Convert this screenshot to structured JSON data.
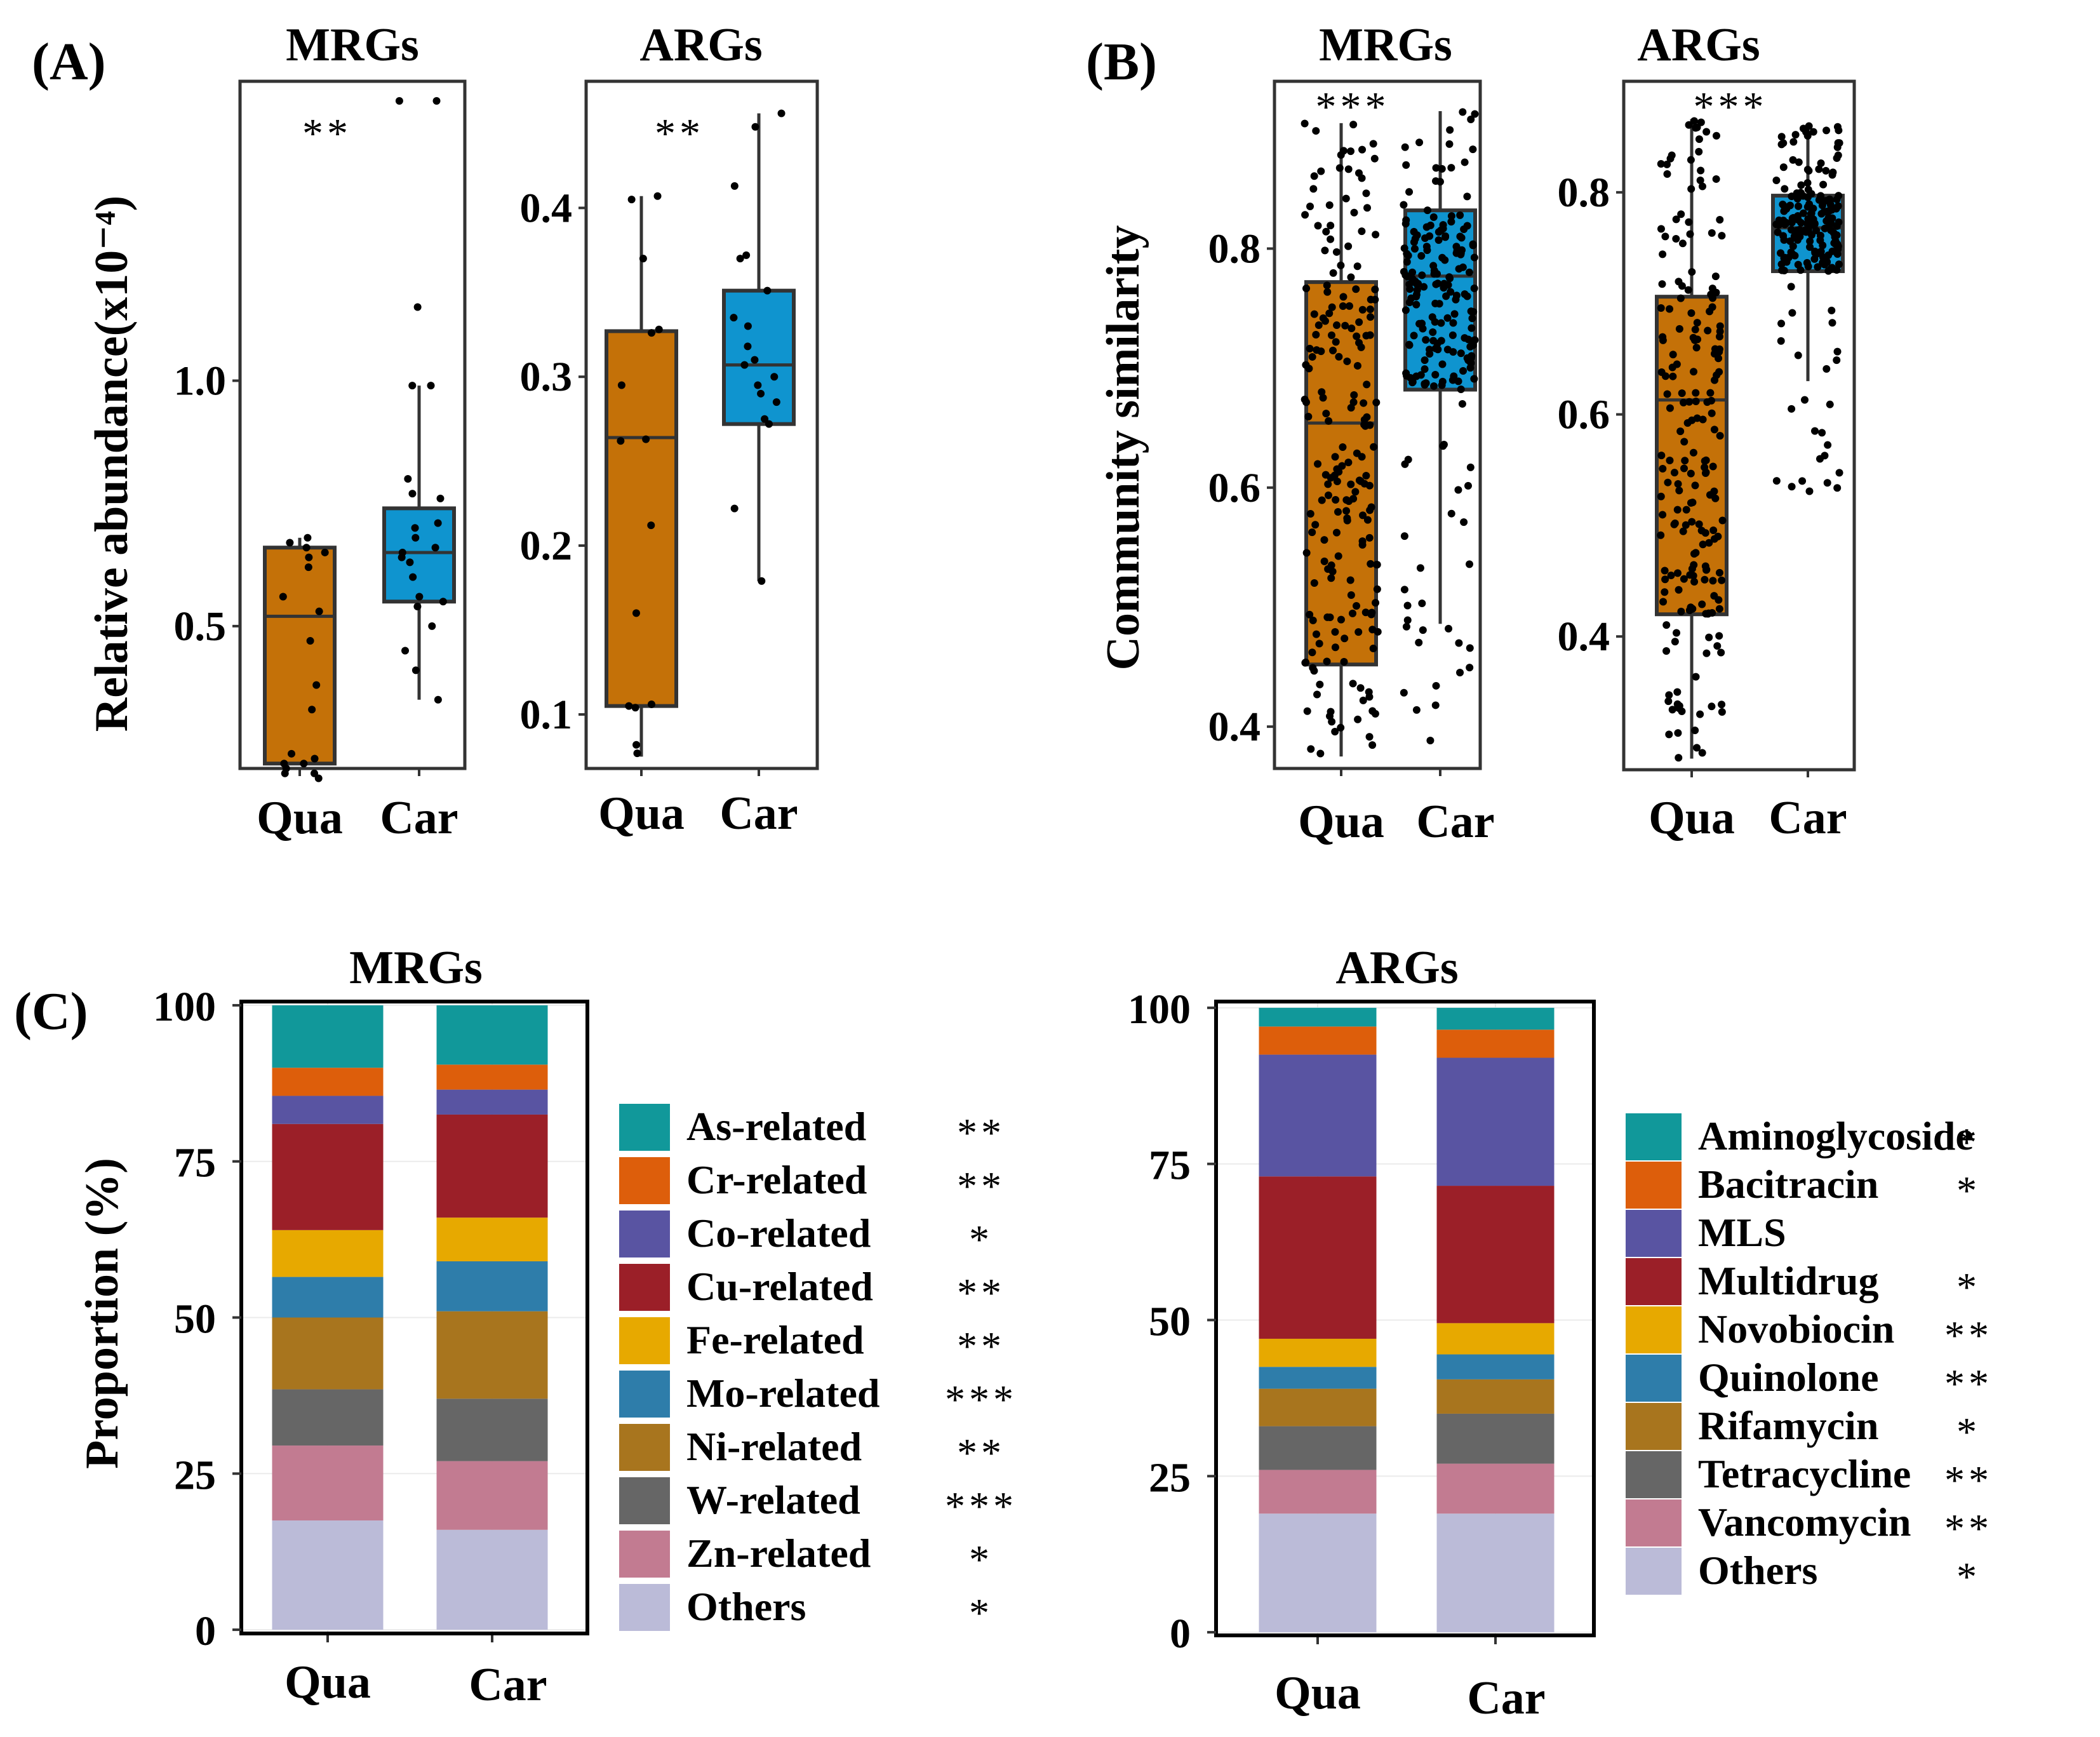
{
  "panel_labels": [
    "(A)",
    "(B)",
    "(C)"
  ],
  "colors": {
    "qua": "#C47108",
    "car": "#0F94CF"
  },
  "chart_data": [
    {
      "id": "A_MRGs",
      "type": "box",
      "title": "MRGs",
      "ylabel": "Relative abundance(x10⁻⁴)",
      "ylim": [
        0.21,
        1.61
      ],
      "yticks": [
        0.5,
        1.0
      ],
      "ytick_labels": [
        "0.5",
        "1.0"
      ],
      "categories": [
        "Qua",
        "Car"
      ],
      "significance": "**",
      "boxes": [
        {
          "name": "Qua",
          "q1": 0.22,
          "median": 0.52,
          "q3": 0.66,
          "lower": 0.22,
          "upper": 0.68,
          "points": [
            0.68,
            0.67,
            0.66,
            0.65,
            0.64,
            0.62,
            0.56,
            0.53,
            0.47,
            0.38,
            0.33,
            0.24,
            0.23,
            0.22,
            0.22,
            0.21,
            0.2,
            0.2,
            0.19
          ]
        },
        {
          "name": "Car",
          "q1": 0.55,
          "median": 0.65,
          "q3": 0.74,
          "lower": 0.35,
          "upper": 0.99,
          "points": [
            1.57,
            1.57,
            1.15,
            0.99,
            0.99,
            0.8,
            0.77,
            0.76,
            0.71,
            0.7,
            0.68,
            0.66,
            0.65,
            0.64,
            0.63,
            0.6,
            0.56,
            0.55,
            0.54,
            0.5,
            0.45,
            0.41,
            0.35
          ]
        }
      ]
    },
    {
      "id": "A_ARGs",
      "type": "box",
      "title": "ARGs",
      "ylabel": "",
      "ylim": [
        0.068,
        0.475
      ],
      "yticks": [
        0.1,
        0.2,
        0.3,
        0.4
      ],
      "ytick_labels": [
        "0.1",
        "0.2",
        "0.3",
        "0.4"
      ],
      "categories": [
        "Qua",
        "Car"
      ],
      "significance": "**",
      "boxes": [
        {
          "name": "Qua",
          "q1": 0.105,
          "median": 0.264,
          "q3": 0.327,
          "lower": 0.075,
          "upper": 0.407,
          "points": [
            0.407,
            0.405,
            0.37,
            0.328,
            0.326,
            0.295,
            0.263,
            0.262,
            0.212,
            0.16,
            0.106,
            0.105,
            0.104,
            0.082,
            0.077
          ]
        },
        {
          "name": "Car",
          "q1": 0.272,
          "median": 0.307,
          "q3": 0.351,
          "lower": 0.179,
          "upper": 0.456,
          "points": [
            0.456,
            0.448,
            0.413,
            0.372,
            0.37,
            0.351,
            0.335,
            0.33,
            0.318,
            0.31,
            0.307,
            0.3,
            0.295,
            0.29,
            0.285,
            0.275,
            0.272,
            0.222,
            0.179
          ]
        }
      ]
    },
    {
      "id": "B_MRGs",
      "type": "box",
      "title": "MRGs",
      "ylabel": "Community similarity",
      "ylim": [
        0.365,
        0.94
      ],
      "yticks": [
        0.4,
        0.6,
        0.8
      ],
      "ytick_labels": [
        "0.4",
        "0.6",
        "0.8"
      ],
      "categories": [
        "Qua",
        "Car"
      ],
      "significance": "***",
      "boxes": [
        {
          "name": "Qua",
          "q1": 0.452,
          "median": 0.654,
          "q3": 0.772,
          "lower": 0.375,
          "upper": 0.905,
          "jitter_n": 200,
          "jitter_min": 0.375,
          "jitter_max": 0.905
        },
        {
          "name": "Car",
          "q1": 0.682,
          "median": 0.777,
          "q3": 0.832,
          "lower": 0.486,
          "upper": 0.915,
          "jitter_n": 200,
          "jitter_min": 0.385,
          "jitter_max": 0.918
        }
      ]
    },
    {
      "id": "B_ARGs",
      "type": "box",
      "title": "ARGs",
      "ylabel": "",
      "ylim": [
        0.28,
        0.9
      ],
      "yticks": [
        0.4,
        0.6,
        0.8
      ],
      "ytick_labels": [
        "0.4",
        "0.6",
        "0.8"
      ],
      "categories": [
        "Qua",
        "Car"
      ],
      "significance": "***",
      "boxes": [
        {
          "name": "Qua",
          "q1": 0.42,
          "median": 0.613,
          "q3": 0.706,
          "lower": 0.29,
          "upper": 0.866,
          "jitter_n": 200,
          "jitter_min": 0.29,
          "jitter_max": 0.866
        },
        {
          "name": "Car",
          "q1": 0.729,
          "median": 0.768,
          "q3": 0.797,
          "lower": 0.63,
          "upper": 0.86,
          "jitter_n": 200,
          "jitter_min": 0.515,
          "jitter_max": 0.86
        }
      ]
    },
    {
      "id": "C_MRGs",
      "type": "stacked_bar",
      "title": "MRGs",
      "ylabel": "Proportion (%)",
      "ylim": [
        -0.6,
        100.6
      ],
      "yticks": [
        0,
        25,
        50,
        75,
        100
      ],
      "ytick_labels": [
        "0",
        "25",
        "50",
        "75",
        "100"
      ],
      "categories": [
        "Qua",
        "Car"
      ],
      "series": [
        {
          "name": "Others",
          "sig": "*",
          "color": "#BBBBD8",
          "values": [
            17.5,
            16.0
          ]
        },
        {
          "name": "Zn-related",
          "sig": "*",
          "color": "#C27B91",
          "values": [
            12.0,
            11.0
          ]
        },
        {
          "name": "W-related",
          "sig": "***",
          "color": "#666666",
          "values": [
            9.0,
            10.0
          ]
        },
        {
          "name": "Ni-related",
          "sig": "**",
          "color": "#A8751E",
          "values": [
            11.5,
            14.0
          ]
        },
        {
          "name": "Mo-related",
          "sig": "***",
          "color": "#2E7DAA",
          "values": [
            6.5,
            8.0
          ]
        },
        {
          "name": "Fe-related",
          "sig": "**",
          "color": "#E7A900",
          "values": [
            7.5,
            7.0
          ]
        },
        {
          "name": "Cu-related",
          "sig": "**",
          "color": "#9B1F28",
          "values": [
            17.0,
            16.5
          ]
        },
        {
          "name": "Co-related",
          "sig": "*",
          "color": "#5954A2",
          "values": [
            4.5,
            4.0
          ]
        },
        {
          "name": "Cr-related",
          "sig": "**",
          "color": "#DD5E0B",
          "values": [
            4.5,
            4.0
          ]
        },
        {
          "name": "As-related",
          "sig": "**",
          "color": "#11989A",
          "values": [
            10.0,
            9.5
          ]
        }
      ]
    },
    {
      "id": "C_ARGs",
      "type": "stacked_bar",
      "title": "ARGs",
      "ylabel": "",
      "ylim": [
        -0.5,
        101.0
      ],
      "yticks": [
        0,
        25,
        50,
        75,
        100
      ],
      "ytick_labels": [
        "0",
        "25",
        "50",
        "75",
        "100"
      ],
      "categories": [
        "Qua",
        "Car"
      ],
      "series": [
        {
          "name": "Others",
          "sig": "*",
          "color": "#BBBBD8",
          "values": [
            19.0,
            19.0
          ]
        },
        {
          "name": "Vancomycin",
          "sig": "**",
          "color": "#C27B91",
          "values": [
            7.0,
            8.0
          ]
        },
        {
          "name": "Tetracycline",
          "sig": "**",
          "color": "#666666",
          "values": [
            7.0,
            8.0
          ]
        },
        {
          "name": "Rifamycin",
          "sig": "*",
          "color": "#A8751E",
          "values": [
            6.0,
            5.5
          ]
        },
        {
          "name": "Quinolone",
          "sig": "**",
          "color": "#2E7DAA",
          "values": [
            3.5,
            4.0
          ]
        },
        {
          "name": "Novobiocin",
          "sig": "**",
          "color": "#E7A900",
          "values": [
            4.5,
            5.0
          ]
        },
        {
          "name": "Multidrug",
          "sig": "*",
          "color": "#9B1F28",
          "values": [
            26.0,
            22.0
          ]
        },
        {
          "name": "MLS",
          "sig": "",
          "color": "#5954A2",
          "values": [
            19.5,
            20.5
          ]
        },
        {
          "name": "Bacitracin",
          "sig": "*",
          "color": "#DD5E0B",
          "values": [
            4.5,
            4.5
          ]
        },
        {
          "name": "Aminoglycoside",
          "sig": "*",
          "color": "#11989A",
          "values": [
            3.0,
            3.5
          ]
        }
      ]
    }
  ]
}
